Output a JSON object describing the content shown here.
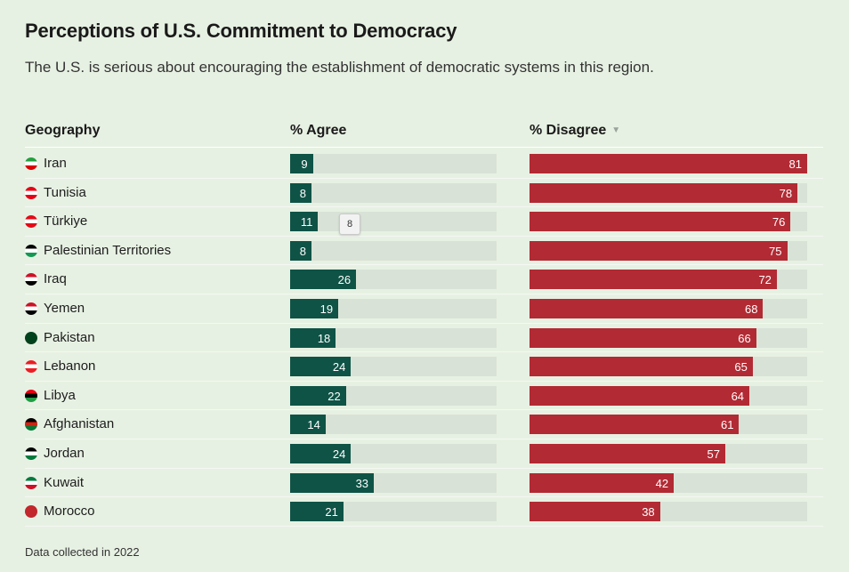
{
  "header": {
    "title": "Perceptions of U.S. Commitment to Democracy",
    "subtitle": "The U.S. is serious about encouraging the establishment of democratic systems in this region."
  },
  "columns": {
    "geography": "Geography",
    "agree": "% Agree",
    "disagree": "% Disagree",
    "sort_icon": "triangle-down-icon"
  },
  "tooltip": {
    "value": "8"
  },
  "footer": {
    "note": "Data collected in 2022"
  },
  "colors": {
    "agree": "#0e5346",
    "disagree": "#b22a33",
    "track": "#d9e2d6",
    "background": "#e7f1e3"
  },
  "chart_data": {
    "type": "bar",
    "categories": [
      "Iran",
      "Tunisia",
      "Türkiye",
      "Palestinian Territories",
      "Iraq",
      "Yemen",
      "Pakistan",
      "Lebanon",
      "Libya",
      "Afghanistan",
      "Jordan",
      "Kuwait",
      "Morocco"
    ],
    "series": [
      {
        "name": "% Agree",
        "values": [
          9,
          8,
          11,
          8,
          26,
          19,
          18,
          24,
          22,
          14,
          24,
          33,
          21
        ]
      },
      {
        "name": "% Disagree",
        "values": [
          81,
          78,
          76,
          75,
          72,
          68,
          66,
          65,
          64,
          61,
          57,
          42,
          38
        ]
      }
    ],
    "ylim": [
      0,
      100
    ],
    "flags": [
      {
        "icon": "iran-flag-icon",
        "colors": [
          "#239f40",
          "#ffffff",
          "#da0000"
        ]
      },
      {
        "icon": "tunisia-flag-icon",
        "colors": [
          "#e70013",
          "#ffffff",
          "#e70013"
        ]
      },
      {
        "icon": "turkiye-flag-icon",
        "colors": [
          "#e30a17",
          "#ffffff",
          "#e30a17"
        ]
      },
      {
        "icon": "palestine-flag-icon",
        "colors": [
          "#000000",
          "#ffffff",
          "#149954"
        ]
      },
      {
        "icon": "iraq-flag-icon",
        "colors": [
          "#ce1126",
          "#ffffff",
          "#000000"
        ]
      },
      {
        "icon": "yemen-flag-icon",
        "colors": [
          "#ce1126",
          "#ffffff",
          "#000000"
        ]
      },
      {
        "icon": "pakistan-flag-icon",
        "colors": [
          "#01411c",
          "#01411c",
          "#01411c"
        ]
      },
      {
        "icon": "lebanon-flag-icon",
        "colors": [
          "#ed1c24",
          "#ffffff",
          "#ed1c24"
        ]
      },
      {
        "icon": "libya-flag-icon",
        "colors": [
          "#e70013",
          "#000000",
          "#239e46"
        ]
      },
      {
        "icon": "afghanistan-flag-icon",
        "colors": [
          "#000000",
          "#d32011",
          "#007a36"
        ]
      },
      {
        "icon": "jordan-flag-icon",
        "colors": [
          "#000000",
          "#ffffff",
          "#007a3d"
        ]
      },
      {
        "icon": "kuwait-flag-icon",
        "colors": [
          "#007a3d",
          "#ffffff",
          "#ce1126"
        ]
      },
      {
        "icon": "morocco-flag-icon",
        "colors": [
          "#c1272d",
          "#c1272d",
          "#c1272d"
        ]
      }
    ]
  }
}
